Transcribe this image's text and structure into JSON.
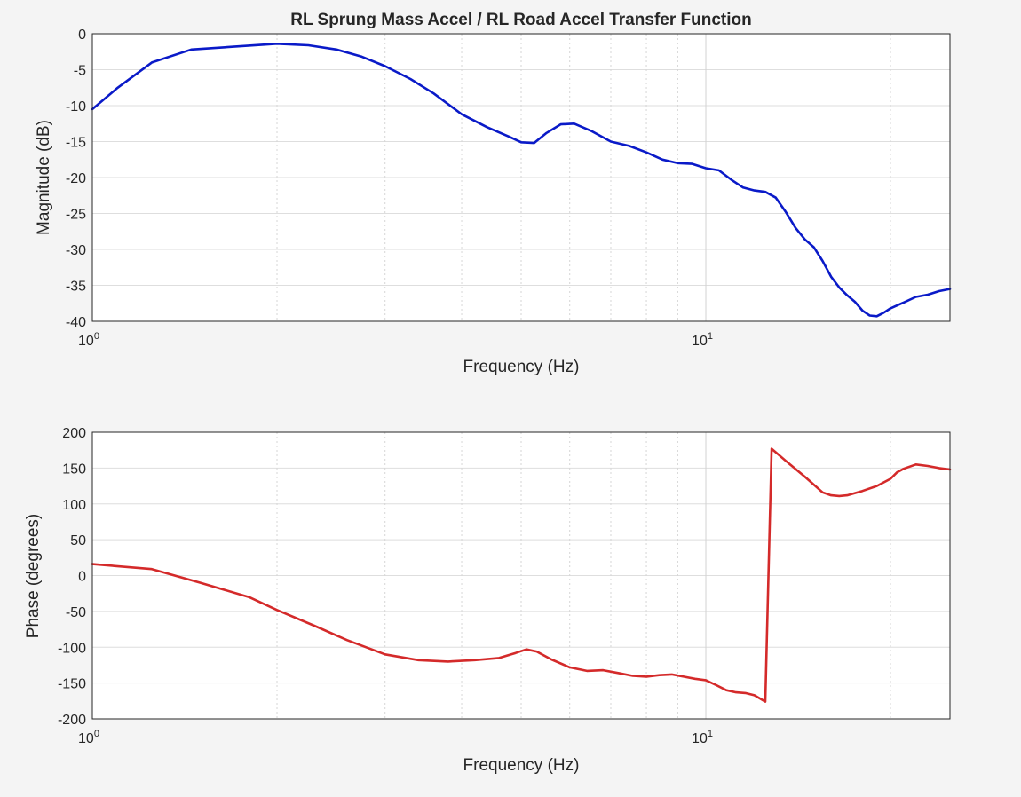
{
  "figure": {
    "title": "RL Sprung Mass Accel / RL Road Accel Transfer Function"
  },
  "chart_data": [
    {
      "type": "line",
      "title": "RL Sprung Mass Accel / RL Road Accel Transfer Function",
      "xlabel": "Frequency (Hz)",
      "ylabel": "Magnitude (dB)",
      "xscale": "log",
      "xlim": [
        1,
        25
      ],
      "ylim": [
        -40,
        0
      ],
      "yticks": [
        0,
        -5,
        -10,
        -15,
        -20,
        -25,
        -30,
        -35,
        -40
      ],
      "xticks": [
        {
          "base": "10",
          "exp": "0"
        },
        {
          "base": "10",
          "exp": "1"
        }
      ],
      "grid": true,
      "color": "#0a1ac8",
      "series": [
        {
          "x": [
            1.0,
            1.1,
            1.25,
            1.45,
            1.7,
            2.0,
            2.25,
            2.5,
            2.75,
            3.0,
            3.3,
            3.6,
            4.0,
            4.4,
            4.8,
            5.0,
            5.25,
            5.5,
            5.8,
            6.1,
            6.5,
            7.0,
            7.5,
            8.0,
            8.5,
            9.0,
            9.5,
            10.0,
            10.5,
            11.0,
            11.5,
            12.0,
            12.5,
            13.0,
            13.5,
            14.0,
            14.5,
            15.0,
            15.5,
            16.0,
            16.5,
            17.0,
            17.5,
            18.0,
            18.5,
            19.0,
            19.5,
            20.0,
            21.0,
            22.0,
            23.0,
            24.0,
            25.0
          ],
          "y": [
            -10.5,
            -7.5,
            -4.0,
            -2.2,
            -1.8,
            -1.4,
            -1.6,
            -2.2,
            -3.2,
            -4.5,
            -6.3,
            -8.3,
            -11.2,
            -13.0,
            -14.4,
            -15.1,
            -15.2,
            -13.8,
            -12.6,
            -12.5,
            -13.5,
            -15.0,
            -15.6,
            -16.5,
            -17.5,
            -18.0,
            -18.1,
            -18.7,
            -19.0,
            -20.3,
            -21.4,
            -21.8,
            -22.0,
            -22.8,
            -24.8,
            -27.0,
            -28.6,
            -29.7,
            -31.6,
            -33.8,
            -35.3,
            -36.4,
            -37.3,
            -38.5,
            -39.2,
            -39.3,
            -38.8,
            -38.2,
            -37.4,
            -36.6,
            -36.3,
            -35.8,
            -35.5
          ]
        }
      ]
    },
    {
      "type": "line",
      "title": "",
      "xlabel": "Frequency (Hz)",
      "ylabel": "Phase (degrees)",
      "xscale": "log",
      "xlim": [
        1,
        25
      ],
      "ylim": [
        -200,
        200
      ],
      "yticks": [
        200,
        150,
        100,
        50,
        0,
        -50,
        -100,
        -150,
        -200
      ],
      "xticks": [
        {
          "base": "10",
          "exp": "0"
        },
        {
          "base": "10",
          "exp": "1"
        }
      ],
      "grid": true,
      "color": "#d42a2a",
      "series": [
        {
          "x": [
            1.0,
            1.25,
            1.5,
            1.8,
            2.0,
            2.3,
            2.6,
            3.0,
            3.4,
            3.8,
            4.2,
            4.6,
            4.9,
            5.1,
            5.3,
            5.6,
            6.0,
            6.4,
            6.8,
            7.2,
            7.6,
            8.0,
            8.4,
            8.8,
            9.2,
            9.6,
            10.0,
            10.4,
            10.8,
            11.2,
            11.6,
            12.0,
            12.5,
            12.8,
            13.5,
            14.5,
            15.5,
            16.0,
            16.5,
            17.0,
            17.5,
            18.0,
            19.0,
            20.0,
            20.5,
            21.0,
            22.0,
            23.0,
            24.0,
            25.0
          ],
          "y": [
            16,
            9,
            -10,
            -30,
            -48,
            -70,
            -90,
            -110,
            -118,
            -120,
            -118,
            -115,
            -108,
            -103,
            -106,
            -117,
            -128,
            -133,
            -132,
            -136,
            -140,
            -141,
            -139,
            -138,
            -141,
            -144,
            -146,
            -153,
            -160,
            -163,
            -164,
            -167,
            -176,
            177,
            160,
            138,
            116,
            112,
            111,
            112,
            115,
            118,
            125,
            135,
            144,
            149,
            155,
            153,
            150,
            148
          ]
        }
      ]
    }
  ]
}
